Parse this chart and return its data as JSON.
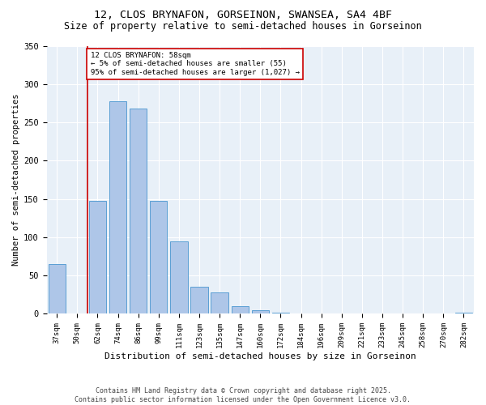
{
  "title1": "12, CLOS BRYNAFON, GORSEINON, SWANSEA, SA4 4BF",
  "title2": "Size of property relative to semi-detached houses in Gorseinon",
  "xlabel": "Distribution of semi-detached houses by size in Gorseinon",
  "ylabel": "Number of semi-detached properties",
  "categories": [
    "37sqm",
    "50sqm",
    "62sqm",
    "74sqm",
    "86sqm",
    "99sqm",
    "111sqm",
    "123sqm",
    "135sqm",
    "147sqm",
    "160sqm",
    "172sqm",
    "184sqm",
    "196sqm",
    "209sqm",
    "221sqm",
    "233sqm",
    "245sqm",
    "258sqm",
    "270sqm",
    "282sqm"
  ],
  "values": [
    65,
    0,
    148,
    278,
    268,
    148,
    95,
    35,
    28,
    10,
    5,
    2,
    1,
    0,
    0,
    0,
    0,
    0,
    0,
    0,
    2
  ],
  "bar_color": "#aec6e8",
  "bar_edge_color": "#5a9fd4",
  "marker_color": "#cc0000",
  "annotation_text": "12 CLOS BRYNAFON: 58sqm\n← 5% of semi-detached houses are smaller (55)\n95% of semi-detached houses are larger (1,027) →",
  "annotation_box_color": "#cc0000",
  "ylim": [
    0,
    350
  ],
  "yticks": [
    0,
    50,
    100,
    150,
    200,
    250,
    300,
    350
  ],
  "bg_color": "#e8f0f8",
  "footer": "Contains HM Land Registry data © Crown copyright and database right 2025.\nContains public sector information licensed under the Open Government Licence v3.0.",
  "title_fontsize": 9.5,
  "subtitle_fontsize": 8.5
}
